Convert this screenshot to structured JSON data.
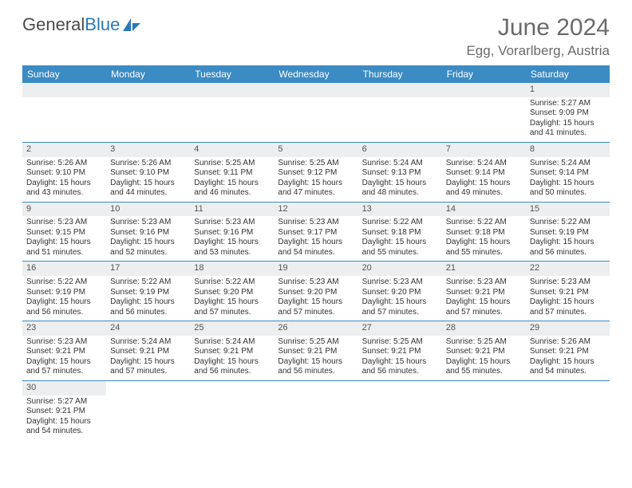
{
  "logo": {
    "text1": "General",
    "text2": "Blue"
  },
  "header": {
    "month": "June 2024",
    "location": "Egg, Vorarlberg, Austria"
  },
  "dow": [
    "Sunday",
    "Monday",
    "Tuesday",
    "Wednesday",
    "Thursday",
    "Friday",
    "Saturday"
  ],
  "colors": {
    "header_bg": "#3b8bc4",
    "header_text": "#ffffff",
    "daynum_bg": "#eceeef",
    "body_text": "#333333",
    "title_text": "#6a6a6a",
    "cell_border": "#3b8bc4"
  },
  "weeks": [
    [
      null,
      null,
      null,
      null,
      null,
      null,
      {
        "n": "1",
        "sr": "Sunrise: 5:27 AM",
        "ss": "Sunset: 9:09 PM",
        "d1": "Daylight: 15 hours",
        "d2": "and 41 minutes."
      }
    ],
    [
      {
        "n": "2",
        "sr": "Sunrise: 5:26 AM",
        "ss": "Sunset: 9:10 PM",
        "d1": "Daylight: 15 hours",
        "d2": "and 43 minutes."
      },
      {
        "n": "3",
        "sr": "Sunrise: 5:26 AM",
        "ss": "Sunset: 9:10 PM",
        "d1": "Daylight: 15 hours",
        "d2": "and 44 minutes."
      },
      {
        "n": "4",
        "sr": "Sunrise: 5:25 AM",
        "ss": "Sunset: 9:11 PM",
        "d1": "Daylight: 15 hours",
        "d2": "and 46 minutes."
      },
      {
        "n": "5",
        "sr": "Sunrise: 5:25 AM",
        "ss": "Sunset: 9:12 PM",
        "d1": "Daylight: 15 hours",
        "d2": "and 47 minutes."
      },
      {
        "n": "6",
        "sr": "Sunrise: 5:24 AM",
        "ss": "Sunset: 9:13 PM",
        "d1": "Daylight: 15 hours",
        "d2": "and 48 minutes."
      },
      {
        "n": "7",
        "sr": "Sunrise: 5:24 AM",
        "ss": "Sunset: 9:14 PM",
        "d1": "Daylight: 15 hours",
        "d2": "and 49 minutes."
      },
      {
        "n": "8",
        "sr": "Sunrise: 5:24 AM",
        "ss": "Sunset: 9:14 PM",
        "d1": "Daylight: 15 hours",
        "d2": "and 50 minutes."
      }
    ],
    [
      {
        "n": "9",
        "sr": "Sunrise: 5:23 AM",
        "ss": "Sunset: 9:15 PM",
        "d1": "Daylight: 15 hours",
        "d2": "and 51 minutes."
      },
      {
        "n": "10",
        "sr": "Sunrise: 5:23 AM",
        "ss": "Sunset: 9:16 PM",
        "d1": "Daylight: 15 hours",
        "d2": "and 52 minutes."
      },
      {
        "n": "11",
        "sr": "Sunrise: 5:23 AM",
        "ss": "Sunset: 9:16 PM",
        "d1": "Daylight: 15 hours",
        "d2": "and 53 minutes."
      },
      {
        "n": "12",
        "sr": "Sunrise: 5:23 AM",
        "ss": "Sunset: 9:17 PM",
        "d1": "Daylight: 15 hours",
        "d2": "and 54 minutes."
      },
      {
        "n": "13",
        "sr": "Sunrise: 5:22 AM",
        "ss": "Sunset: 9:18 PM",
        "d1": "Daylight: 15 hours",
        "d2": "and 55 minutes."
      },
      {
        "n": "14",
        "sr": "Sunrise: 5:22 AM",
        "ss": "Sunset: 9:18 PM",
        "d1": "Daylight: 15 hours",
        "d2": "and 55 minutes."
      },
      {
        "n": "15",
        "sr": "Sunrise: 5:22 AM",
        "ss": "Sunset: 9:19 PM",
        "d1": "Daylight: 15 hours",
        "d2": "and 56 minutes."
      }
    ],
    [
      {
        "n": "16",
        "sr": "Sunrise: 5:22 AM",
        "ss": "Sunset: 9:19 PM",
        "d1": "Daylight: 15 hours",
        "d2": "and 56 minutes."
      },
      {
        "n": "17",
        "sr": "Sunrise: 5:22 AM",
        "ss": "Sunset: 9:19 PM",
        "d1": "Daylight: 15 hours",
        "d2": "and 56 minutes."
      },
      {
        "n": "18",
        "sr": "Sunrise: 5:22 AM",
        "ss": "Sunset: 9:20 PM",
        "d1": "Daylight: 15 hours",
        "d2": "and 57 minutes."
      },
      {
        "n": "19",
        "sr": "Sunrise: 5:23 AM",
        "ss": "Sunset: 9:20 PM",
        "d1": "Daylight: 15 hours",
        "d2": "and 57 minutes."
      },
      {
        "n": "20",
        "sr": "Sunrise: 5:23 AM",
        "ss": "Sunset: 9:20 PM",
        "d1": "Daylight: 15 hours",
        "d2": "and 57 minutes."
      },
      {
        "n": "21",
        "sr": "Sunrise: 5:23 AM",
        "ss": "Sunset: 9:21 PM",
        "d1": "Daylight: 15 hours",
        "d2": "and 57 minutes."
      },
      {
        "n": "22",
        "sr": "Sunrise: 5:23 AM",
        "ss": "Sunset: 9:21 PM",
        "d1": "Daylight: 15 hours",
        "d2": "and 57 minutes."
      }
    ],
    [
      {
        "n": "23",
        "sr": "Sunrise: 5:23 AM",
        "ss": "Sunset: 9:21 PM",
        "d1": "Daylight: 15 hours",
        "d2": "and 57 minutes."
      },
      {
        "n": "24",
        "sr": "Sunrise: 5:24 AM",
        "ss": "Sunset: 9:21 PM",
        "d1": "Daylight: 15 hours",
        "d2": "and 57 minutes."
      },
      {
        "n": "25",
        "sr": "Sunrise: 5:24 AM",
        "ss": "Sunset: 9:21 PM",
        "d1": "Daylight: 15 hours",
        "d2": "and 56 minutes."
      },
      {
        "n": "26",
        "sr": "Sunrise: 5:25 AM",
        "ss": "Sunset: 9:21 PM",
        "d1": "Daylight: 15 hours",
        "d2": "and 56 minutes."
      },
      {
        "n": "27",
        "sr": "Sunrise: 5:25 AM",
        "ss": "Sunset: 9:21 PM",
        "d1": "Daylight: 15 hours",
        "d2": "and 56 minutes."
      },
      {
        "n": "28",
        "sr": "Sunrise: 5:25 AM",
        "ss": "Sunset: 9:21 PM",
        "d1": "Daylight: 15 hours",
        "d2": "and 55 minutes."
      },
      {
        "n": "29",
        "sr": "Sunrise: 5:26 AM",
        "ss": "Sunset: 9:21 PM",
        "d1": "Daylight: 15 hours",
        "d2": "and 54 minutes."
      }
    ],
    [
      {
        "n": "30",
        "sr": "Sunrise: 5:27 AM",
        "ss": "Sunset: 9:21 PM",
        "d1": "Daylight: 15 hours",
        "d2": "and 54 minutes."
      },
      null,
      null,
      null,
      null,
      null,
      null
    ]
  ]
}
